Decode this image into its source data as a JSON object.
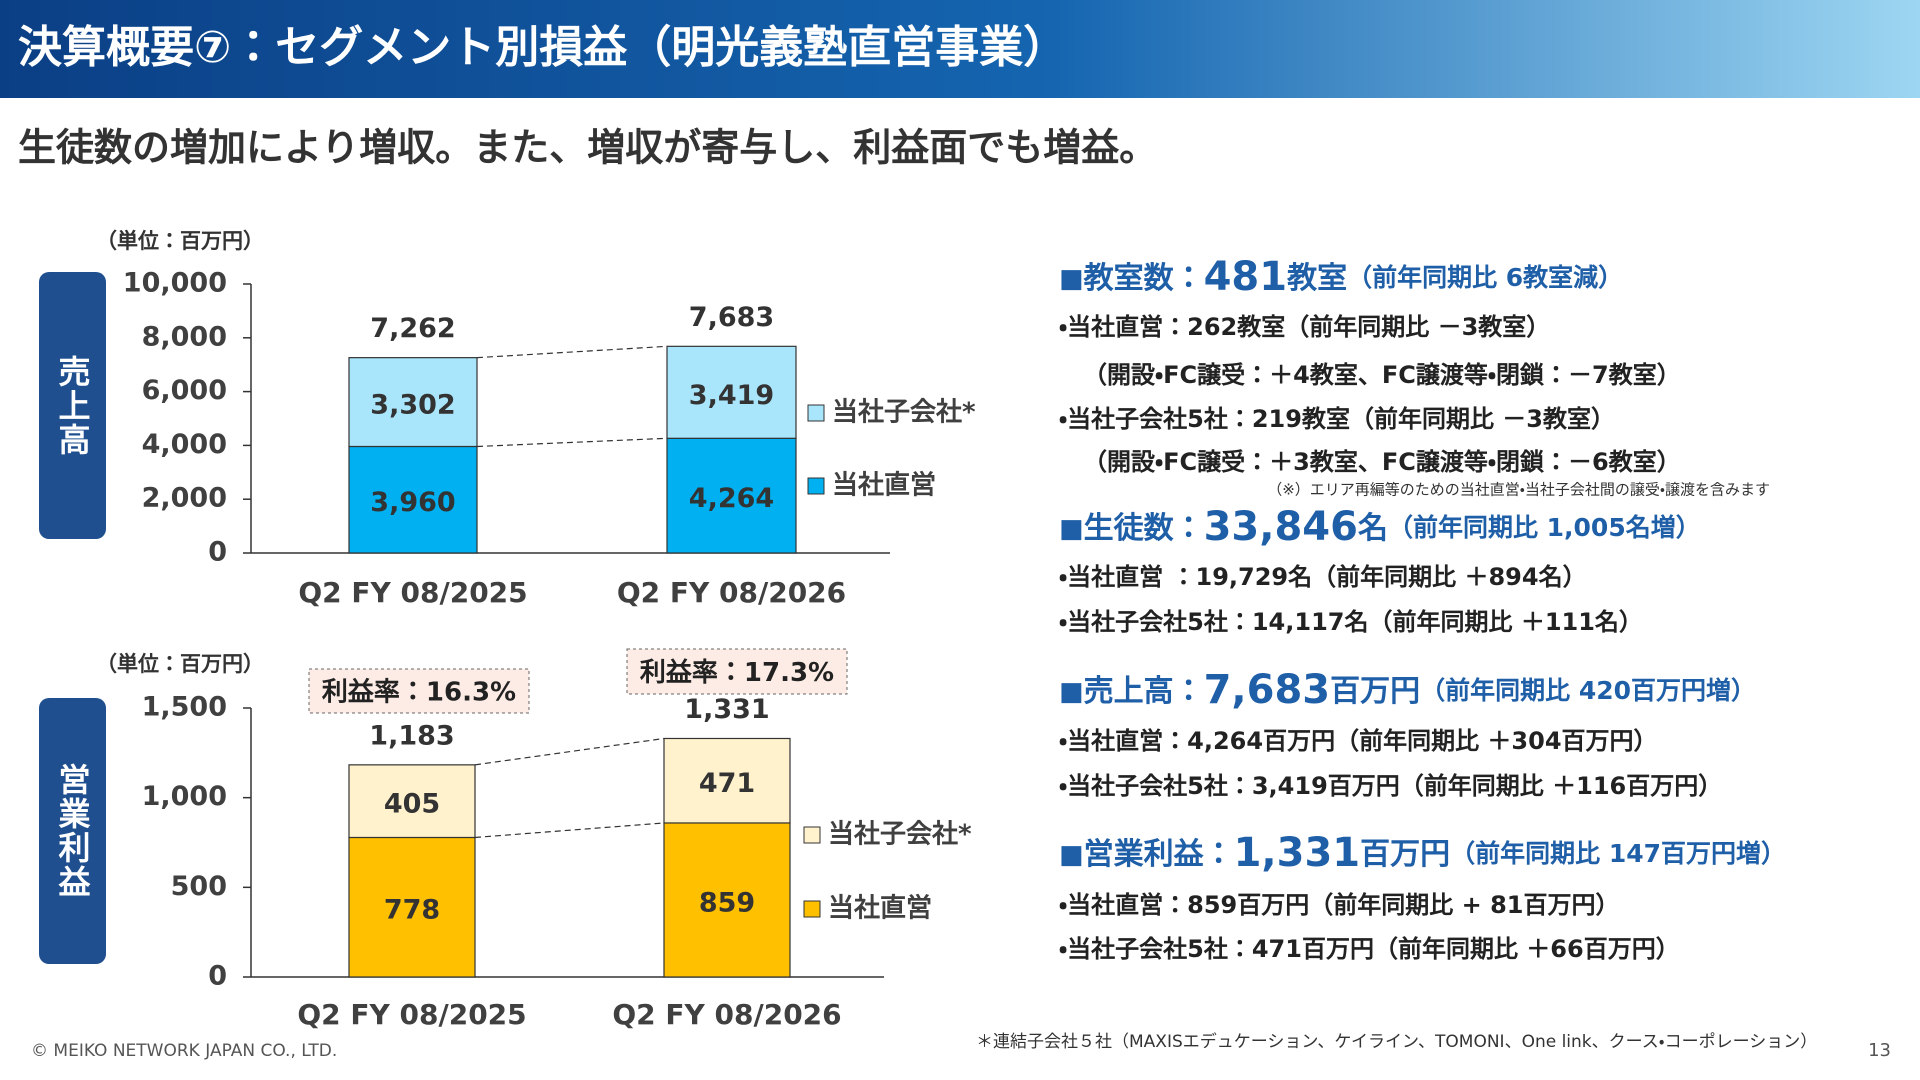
{
  "header": {
    "title": "決算概要⑦：セグメント別損益（明光義塾直営事業）",
    "subtitle": "生徒数の増加により増収。また、増収が寄与し、利益面でも増益。"
  },
  "chart_data": [
    {
      "type": "bar",
      "stacked": true,
      "title": "売上高",
      "unit_label": "（単位：百万円）",
      "categories": [
        "Q2 FY 08/2025",
        "Q2 FY 08/2026"
      ],
      "series": [
        {
          "name": "当社直営",
          "color": "#00b0f0",
          "values": [
            3960,
            4264
          ],
          "value_labels": [
            "3,960",
            "4,264"
          ]
        },
        {
          "name": "当社子会社*",
          "color": "#a9e6fb",
          "values": [
            3302,
            3419
          ],
          "value_labels": [
            "3,302",
            "3,419"
          ]
        }
      ],
      "totals": [
        7262,
        7683
      ],
      "total_labels": [
        "7,262",
        "7,683"
      ],
      "ylim": [
        0,
        10000
      ],
      "yticks": [
        0,
        {
          "value": 2000,
          "label": "2,000"
        },
        {
          "value": 4000,
          "label": "4,000"
        },
        {
          "value": 6000,
          "label": "6,000"
        },
        {
          "value": 8000,
          "label": "8,000"
        },
        {
          "value": 10000,
          "label": "10,000"
        }
      ]
    },
    {
      "type": "bar",
      "stacked": true,
      "title": "営業利益",
      "unit_label": "（単位：百万円）",
      "categories": [
        "Q2 FY 08/2025",
        "Q2 FY 08/2026"
      ],
      "series": [
        {
          "name": "当社直営",
          "color": "#ffc000",
          "values": [
            778,
            859
          ]
        },
        {
          "name": "当社子会社*",
          "color": "#fff2cc",
          "values": [
            405,
            471
          ]
        }
      ],
      "totals": [
        1183,
        1331
      ],
      "total_labels": [
        "1,183",
        "1,331"
      ],
      "annotations": [
        "利益率：16.3%",
        "利益率：17.3%"
      ],
      "ylim": [
        0,
        1500
      ],
      "yticks": [
        0,
        500,
        {
          "value": 1000,
          "label": "1,000"
        },
        {
          "value": 1500,
          "label": "1,500"
        }
      ]
    }
  ],
  "summary": [
    {
      "heading": {
        "marker": "■",
        "label": "教室数：",
        "value": "481",
        "unit": "教室",
        "note": "（前年同期比 6教室減）"
      },
      "lines": [
        "・当社直営：262教室（前年同期比 －3教室）",
        "（開設・FC譲受：＋4教室、FC譲渡等・閉鎖：－7教室）",
        "・当社子会社5社：219教室（前年同期比 －3教室）",
        "（開設・FC譲受：＋3教室、FC譲渡等・閉鎖：－6教室）"
      ],
      "note": "（※）エリア再編等のための当社直営・当社子会社間の譲受・譲渡を含みます"
    },
    {
      "heading": {
        "marker": "■",
        "label": "生徒数：",
        "value": "33,846",
        "unit": "名",
        "note": "（前年同期比 1,005名増）"
      },
      "lines": [
        "・当社直営 ：19,729名（前年同期比 ＋894名）",
        "・当社子会社5社：14,117名（前年同期比 ＋111名）"
      ]
    },
    {
      "heading": {
        "marker": "■",
        "label": "売上高：",
        "value": "7,683",
        "unit": "百万円",
        "note": "（前年同期比 420百万円増）"
      },
      "lines": [
        "・当社直営：4,264百万円（前年同期比 ＋304百万円）",
        "・当社子会社5社：3,419百万円（前年同期比 ＋116百万円）"
      ]
    },
    {
      "heading": {
        "marker": "■",
        "label": "営業利益：",
        "value": "1,331",
        "unit": "百万円",
        "note": "（前年同期比 147百万円増）"
      },
      "lines": [
        "・当社直営：859百万円（前年同期比 + 81百万円）",
        "・当社子会社5社：471百万円（前年同期比 ＋66百万円）"
      ]
    }
  ],
  "footer": {
    "copyright": "© MEIKO NETWORK JAPAN CO., LTD.",
    "footnote": "＊連結子会社５社（MAXISエデュケーション、ケイライン、TOMONI、One link、クース・コーポレーション）",
    "page": "13"
  }
}
